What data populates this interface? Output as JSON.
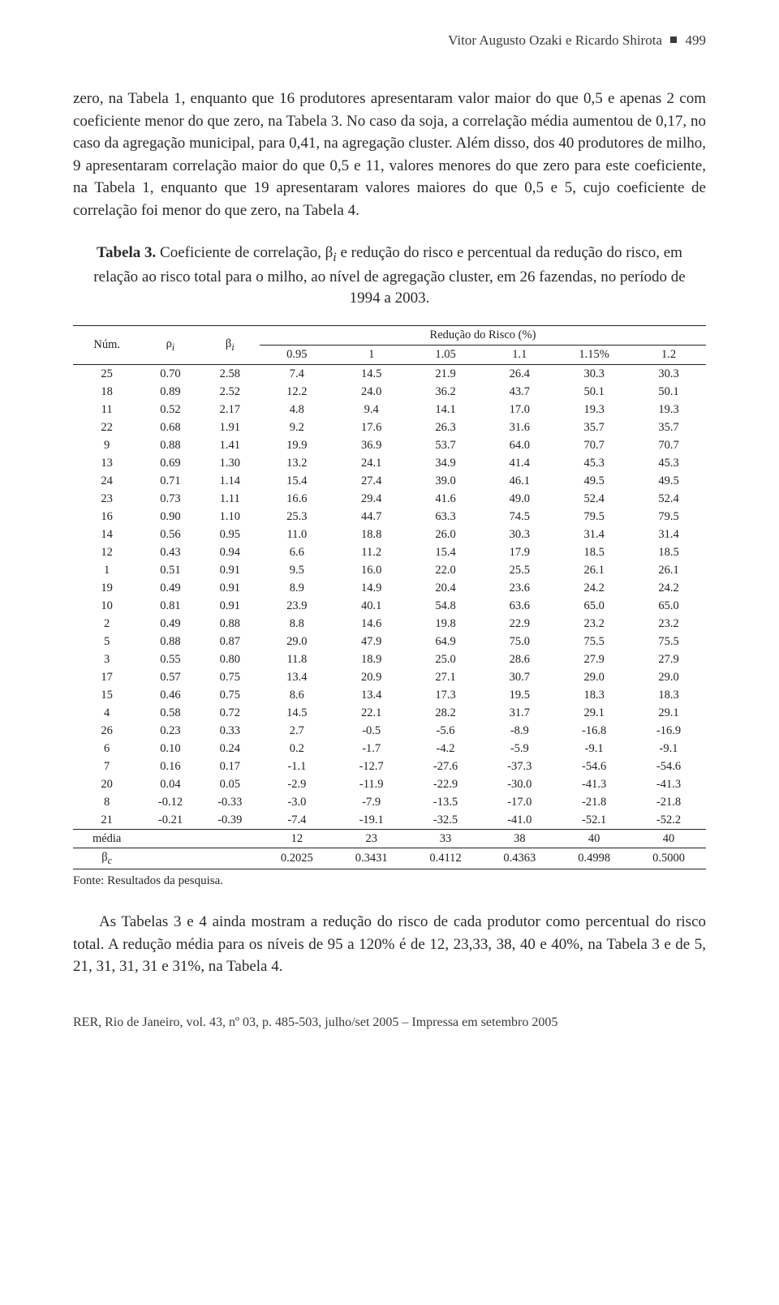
{
  "running_head": {
    "authors": "Vitor Augusto Ozaki e Ricardo Shirota",
    "page_num": "499"
  },
  "paragraph_1": "zero, na Tabela 1, enquanto que 16 produtores apresentaram valor maior do que 0,5 e apenas 2 com coeficiente menor do que zero, na Tabela 3. No caso da soja, a correlação média aumentou de 0,17, no caso da agregação municipal, para 0,41, na agregação cluster. Além disso, dos 40 produtores de milho, 9 apresentaram correlação maior do que 0,5 e 11, valores menores do que zero para este coeficiente, na Tabela 1, enquanto que 19 apresentaram valores maiores do que 0,5 e 5, cujo coeficiente de correlação foi menor do que zero, na Tabela 4.",
  "table3": {
    "caption_label": "Tabela 3.",
    "caption_text": " Coeficiente de correlação, β",
    "caption_sub": "i",
    "caption_tail": " e redução do risco e percentual da redução do risco, em relação ao risco total para o milho, ao nível de agregação cluster, em 26 fazendas, no período de 1994 a 2003.",
    "col_num": "Núm.",
    "col_rho": "ρ",
    "col_rho_sub": "i",
    "col_beta": "β",
    "col_beta_sub": "i",
    "span_header": "Redução do Risco (%)",
    "levels": [
      "0.95",
      "1",
      "1.05",
      "1.1",
      "1.15%",
      "1.2"
    ],
    "rows": [
      [
        "25",
        "0.70",
        "2.58",
        "7.4",
        "14.5",
        "21.9",
        "26.4",
        "30.3",
        "30.3"
      ],
      [
        "18",
        "0.89",
        "2.52",
        "12.2",
        "24.0",
        "36.2",
        "43.7",
        "50.1",
        "50.1"
      ],
      [
        "11",
        "0.52",
        "2.17",
        "4.8",
        "9.4",
        "14.1",
        "17.0",
        "19.3",
        "19.3"
      ],
      [
        "22",
        "0.68",
        "1.91",
        "9.2",
        "17.6",
        "26.3",
        "31.6",
        "35.7",
        "35.7"
      ],
      [
        "9",
        "0.88",
        "1.41",
        "19.9",
        "36.9",
        "53.7",
        "64.0",
        "70.7",
        "70.7"
      ],
      [
        "13",
        "0.69",
        "1.30",
        "13.2",
        "24.1",
        "34.9",
        "41.4",
        "45.3",
        "45.3"
      ],
      [
        "24",
        "0.71",
        "1.14",
        "15.4",
        "27.4",
        "39.0",
        "46.1",
        "49.5",
        "49.5"
      ],
      [
        "23",
        "0.73",
        "1.11",
        "16.6",
        "29.4",
        "41.6",
        "49.0",
        "52.4",
        "52.4"
      ],
      [
        "16",
        "0.90",
        "1.10",
        "25.3",
        "44.7",
        "63.3",
        "74.5",
        "79.5",
        "79.5"
      ],
      [
        "14",
        "0.56",
        "0.95",
        "11.0",
        "18.8",
        "26.0",
        "30.3",
        "31.4",
        "31.4"
      ],
      [
        "12",
        "0.43",
        "0.94",
        "6.6",
        "11.2",
        "15.4",
        "17.9",
        "18.5",
        "18.5"
      ],
      [
        "1",
        "0.51",
        "0.91",
        "9.5",
        "16.0",
        "22.0",
        "25.5",
        "26.1",
        "26.1"
      ],
      [
        "19",
        "0.49",
        "0.91",
        "8.9",
        "14.9",
        "20.4",
        "23.6",
        "24.2",
        "24.2"
      ],
      [
        "10",
        "0.81",
        "0.91",
        "23.9",
        "40.1",
        "54.8",
        "63.6",
        "65.0",
        "65.0"
      ],
      [
        "2",
        "0.49",
        "0.88",
        "8.8",
        "14.6",
        "19.8",
        "22.9",
        "23.2",
        "23.2"
      ],
      [
        "5",
        "0.88",
        "0.87",
        "29.0",
        "47.9",
        "64.9",
        "75.0",
        "75.5",
        "75.5"
      ],
      [
        "3",
        "0.55",
        "0.80",
        "11.8",
        "18.9",
        "25.0",
        "28.6",
        "27.9",
        "27.9"
      ],
      [
        "17",
        "0.57",
        "0.75",
        "13.4",
        "20.9",
        "27.1",
        "30.7",
        "29.0",
        "29.0"
      ],
      [
        "15",
        "0.46",
        "0.75",
        "8.6",
        "13.4",
        "17.3",
        "19.5",
        "18.3",
        "18.3"
      ],
      [
        "4",
        "0.58",
        "0.72",
        "14.5",
        "22.1",
        "28.2",
        "31.7",
        "29.1",
        "29.1"
      ],
      [
        "26",
        "0.23",
        "0.33",
        "2.7",
        "-0.5",
        "-5.6",
        "-8.9",
        "-16.8",
        "-16.9"
      ],
      [
        "6",
        "0.10",
        "0.24",
        "0.2",
        "-1.7",
        "-4.2",
        "-5.9",
        "-9.1",
        "-9.1"
      ],
      [
        "7",
        "0.16",
        "0.17",
        "-1.1",
        "-12.7",
        "-27.6",
        "-37.3",
        "-54.6",
        "-54.6"
      ],
      [
        "20",
        "0.04",
        "0.05",
        "-2.9",
        "-11.9",
        "-22.9",
        "-30.0",
        "-41.3",
        "-41.3"
      ],
      [
        "8",
        "-0.12",
        "-0.33",
        "-3.0",
        "-7.9",
        "-13.5",
        "-17.0",
        "-21.8",
        "-21.8"
      ],
      [
        "21",
        "-0.21",
        "-0.39",
        "-7.4",
        "-19.1",
        "-32.5",
        "-41.0",
        "-52.1",
        "-52.2"
      ]
    ],
    "media_label": "média",
    "media_row": [
      "12",
      "23",
      "33",
      "38",
      "40",
      "40"
    ],
    "betac_label": "β",
    "betac_sub": "c",
    "betac_row": [
      "0.2025",
      "0.3431",
      "0.4112",
      "0.4363",
      "0.4998",
      "0.5000"
    ],
    "source": "Fonte: Resultados da pesquisa."
  },
  "paragraph_2": "As Tabelas 3 e 4 ainda mostram a redução do risco de cada produtor como percentual do risco total. A redução média para os níveis de 95 a 120% é de 12, 23,33, 38, 40 e 40%, na Tabela 3 e de 5, 21, 31, 31, 31 e 31%, na Tabela 4.",
  "footer": "RER, Rio de Janeiro, vol. 43, nº 03, p. 485-503, julho/set 2005 – Impressa em setembro 2005"
}
